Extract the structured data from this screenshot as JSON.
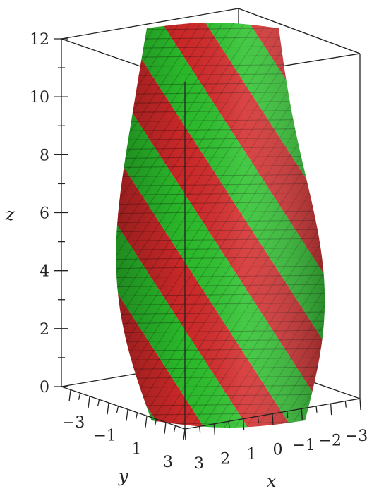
{
  "chart_data": {
    "type": "3d-surface",
    "title": "",
    "surface": "twisted tube with alternating helical bands",
    "band_colors": [
      "#d42a2a",
      "#2cc22c"
    ],
    "num_bands": 8,
    "axes": {
      "x": {
        "label": "x",
        "ticks": [
          "3",
          "2",
          "1",
          "0",
          "−1",
          "−2",
          "−3"
        ],
        "range": [
          -3,
          3
        ]
      },
      "y": {
        "label": "y",
        "ticks": [
          "−3",
          "−1",
          "1",
          "3"
        ],
        "range": [
          -3,
          3
        ]
      },
      "z": {
        "label": "z",
        "ticks": [
          "0",
          "2",
          "4",
          "6",
          "8",
          "10",
          "12"
        ],
        "range": [
          0,
          12
        ]
      }
    },
    "box": true,
    "grid": false
  }
}
